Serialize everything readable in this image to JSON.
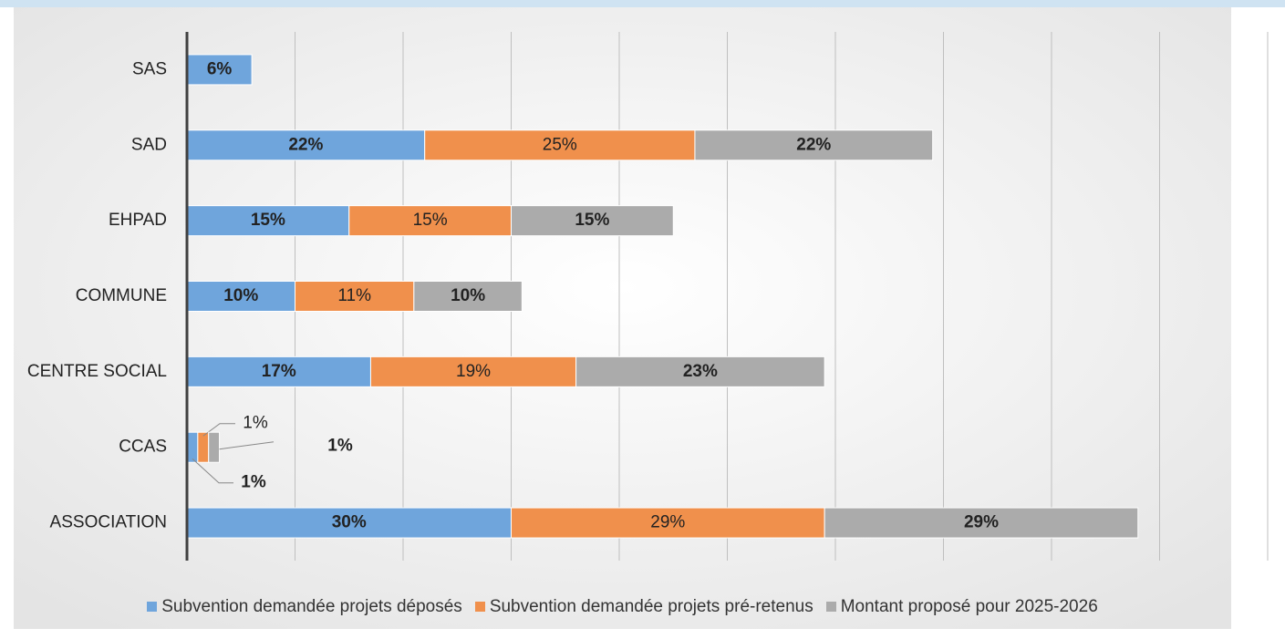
{
  "chart_data": {
    "type": "stacked-bar-horizontal",
    "categories": [
      "ASSOCIATION",
      "CCAS",
      "CENTRE SOCIAL",
      "COMMUNE",
      "EHPAD",
      "SAD",
      "SAS"
    ],
    "series": [
      {
        "name": "Subvention demandée projets déposés",
        "color": "#6fa5dc",
        "values": [
          30,
          1,
          17,
          10,
          15,
          22,
          6
        ],
        "value_labels": [
          "30%",
          "1%",
          "17%",
          "10%",
          "15%",
          "22%",
          "6%"
        ]
      },
      {
        "name": "Subvention demandée projets pré-retenus",
        "color": "#f0904c",
        "values": [
          29,
          1,
          19,
          11,
          15,
          25,
          null
        ],
        "value_labels": [
          "29%",
          "1%",
          "19%",
          "11%",
          "15%",
          "25%",
          null
        ]
      },
      {
        "name": "Montant proposé pour 2025-2026",
        "color": "#ababab",
        "values": [
          29,
          1,
          23,
          10,
          15,
          22,
          null
        ],
        "value_labels": [
          "29%",
          "1%",
          "23%",
          "10%",
          "15%",
          "22%",
          null
        ]
      }
    ],
    "xlim": [
      0,
      100
    ],
    "xticks": [
      0,
      10,
      20,
      30,
      40,
      50,
      60,
      70,
      80,
      90,
      100
    ],
    "grid": true,
    "legend": "bottom"
  }
}
